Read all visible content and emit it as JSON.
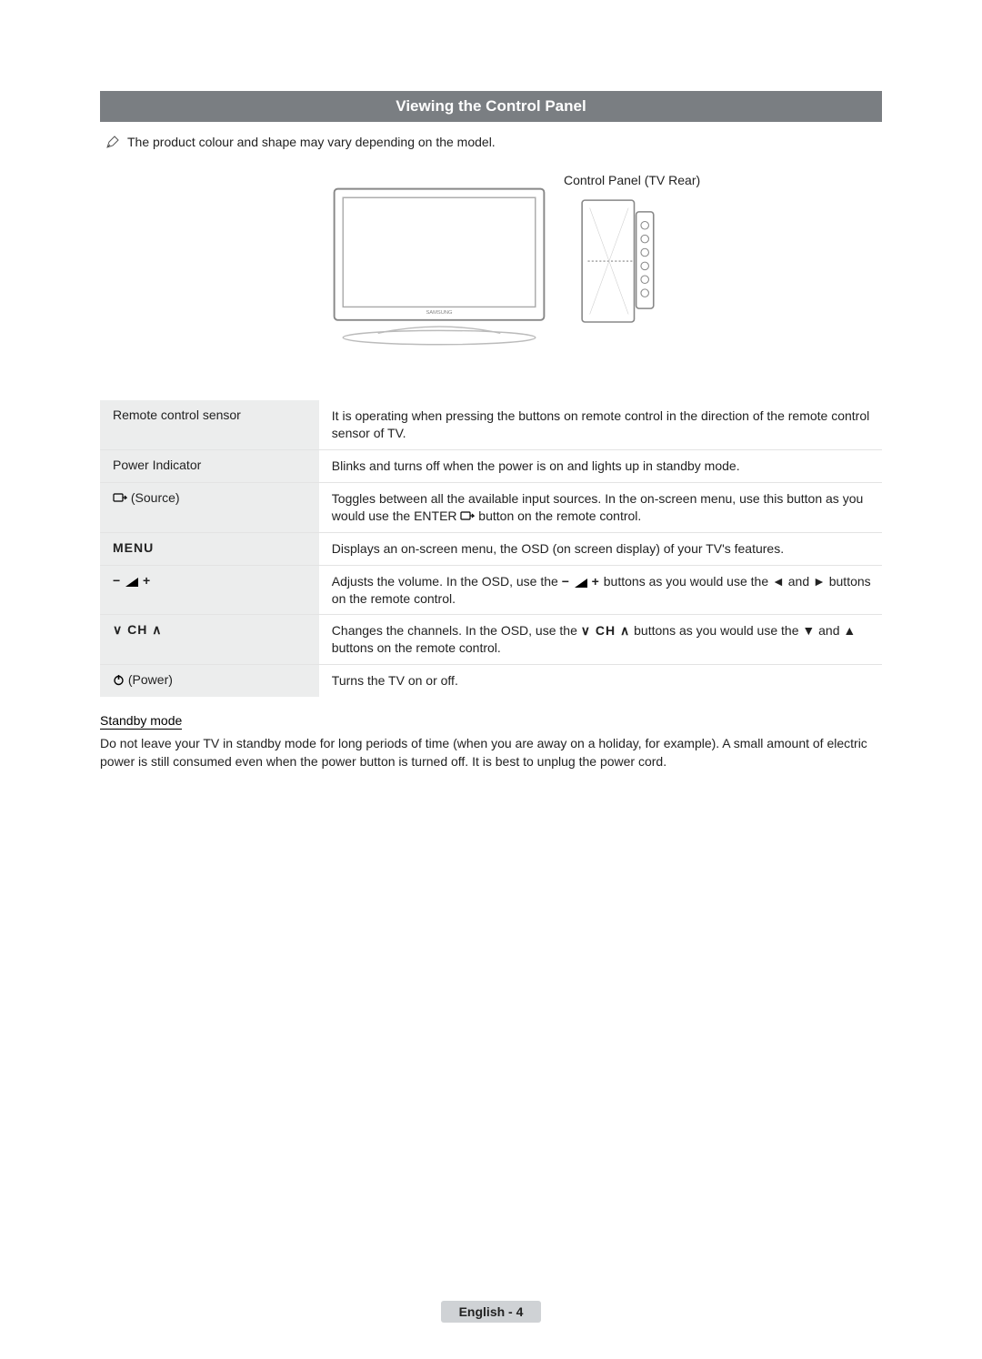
{
  "title": "Viewing the Control Panel",
  "note": "The product colour and shape may vary depending on the model.",
  "rear_label": "Control Panel (TV Rear)",
  "table": {
    "rows": [
      {
        "label_text": "Remote control sensor",
        "label_icon": null,
        "desc": "It is operating when pressing the buttons on remote control in the direction of the remote control sensor of TV."
      },
      {
        "label_text": "Power Indicator",
        "label_icon": null,
        "desc": "Blinks and turns off when the power is on and lights up in standby mode."
      },
      {
        "label_text": " (Source)",
        "label_icon": "source",
        "desc": "Toggles between all the available input sources. In the on-screen menu, use this button as you would use the ENTER",
        "desc_icon": "enter",
        "desc_after": " button on the remote control."
      },
      {
        "label_text": "MENU",
        "label_icon": null,
        "label_bold": true,
        "desc": "Displays an on-screen menu, the OSD (on screen display) of your TV's features."
      },
      {
        "label_text": "",
        "label_icon": "volume",
        "desc": "Adjusts the volume. In the OSD, use the ",
        "desc_icon": "volume",
        "desc_after": " buttons as you would use the ◄ and ► buttons on the remote control."
      },
      {
        "label_text": "",
        "label_icon": "channel",
        "desc": "Changes the channels. In the OSD, use the ",
        "desc_icon": "channel",
        "desc_after": " buttons as you would use the ▼ and ▲ buttons on the remote control."
      },
      {
        "label_text": " (Power)",
        "label_icon": "power",
        "desc": "Turns the TV on or off."
      }
    ]
  },
  "standby": {
    "heading": "Standby mode",
    "body": "Do not leave your TV in standby mode for long periods of time (when you are away on a holiday, for example). A small amount of electric power is still consumed even when the power button is turned off. It is best to unplug the power cord."
  },
  "footer": "English - 4",
  "colors": {
    "title_bg": "#7a7e82",
    "label_bg": "#eceded",
    "row_border": "#e3e3e3",
    "footer_bg": "#cfd2d5"
  },
  "icons": {
    "source": "⎙",
    "enter": "⏎",
    "volume": "− ◢ +",
    "channel": "⋁ CH ⋀",
    "power": "⏻",
    "note": "✎"
  }
}
